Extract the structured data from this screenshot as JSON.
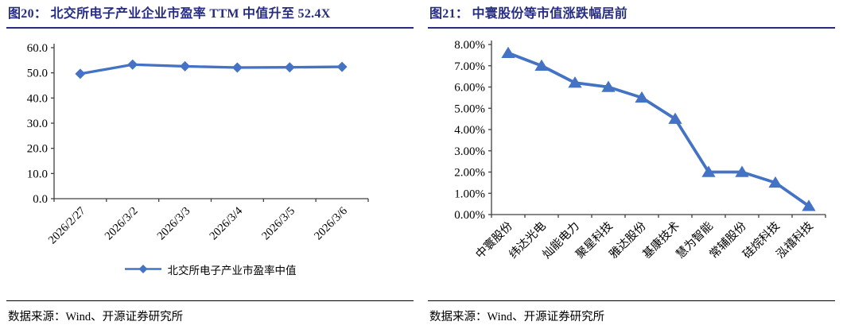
{
  "page": {
    "source_note": "数据来源：Wind、开源证券研究所"
  },
  "theme": {
    "title_color": "#262C81",
    "accent_line": "#4472C4",
    "axis_color": "#404040",
    "rule_color": "#000000"
  },
  "chart_data": [
    {
      "type": "line",
      "title": "图20：  北交所电子产业企业市盈率 TTM 中值升至 52.4X",
      "categories": [
        "2026/2/27",
        "2026/3/2",
        "2026/3/3",
        "2026/3/4",
        "2026/3/5",
        "2026/3/6"
      ],
      "series": [
        {
          "name": "北交所电子产业市盈率中值",
          "values": [
            49.6,
            53.3,
            52.6,
            52.1,
            52.2,
            52.4
          ]
        }
      ],
      "ylim": [
        0,
        60
      ],
      "ytick_step": 10,
      "y_format": "fixed1",
      "xlabel": "",
      "ylabel": "",
      "grid": false,
      "marker": "diamond",
      "line_color": "#4472C4",
      "legend_position": "bottom"
    },
    {
      "type": "line",
      "title": "图21：  中寰股份等市值涨跌幅居前",
      "categories": [
        "中寰股份",
        "纬达光电",
        "灿能电力",
        "聚星科技",
        "雅达股份",
        "基康技术",
        "慧为智能",
        "常辅股份",
        "硅烷科技",
        "泓禧科技"
      ],
      "series": [
        {
          "name": "市值涨跌幅",
          "values": [
            7.6,
            7.0,
            6.2,
            6.0,
            5.5,
            4.5,
            2.0,
            2.0,
            1.5,
            0.4
          ]
        }
      ],
      "ylim": [
        0,
        8
      ],
      "ytick_step": 1,
      "y_format": "percent2",
      "xlabel": "",
      "ylabel": "",
      "grid": false,
      "marker": "triangle",
      "line_color": "#4472C4",
      "legend_position": "none"
    }
  ]
}
